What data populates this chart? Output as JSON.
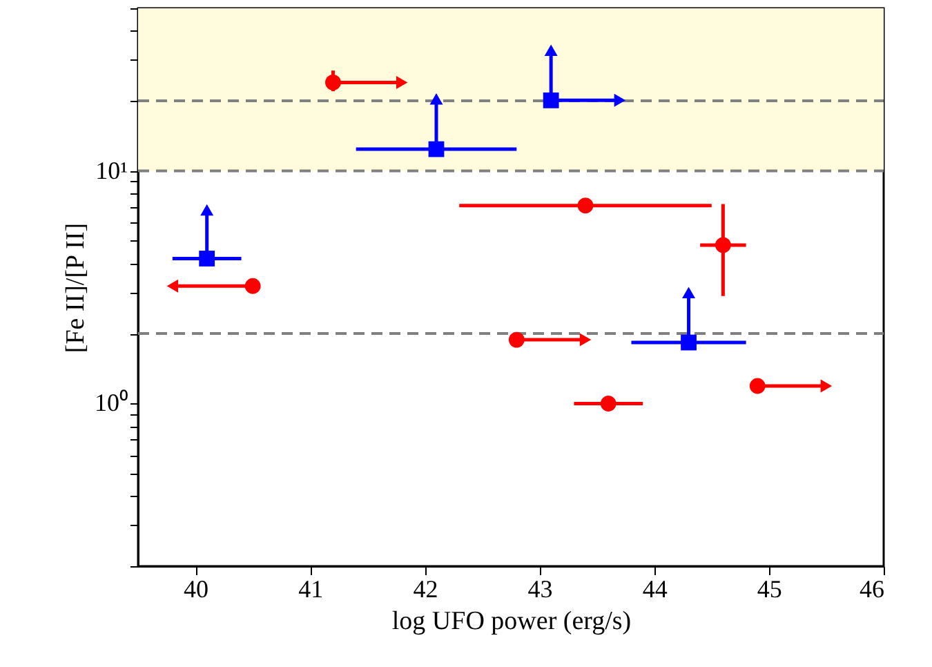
{
  "chart_data": {
    "type": "scatter",
    "xlabel": "log UFO power (erg/s)",
    "ylabel": "[Fe II]/[P II]",
    "xlim": [
      39.5,
      46
    ],
    "xticks": [
      40,
      41,
      42,
      43,
      44,
      45,
      46
    ],
    "ylim": [
      0.2,
      50
    ],
    "log": "y",
    "yticks": [
      {
        "value": 0.2,
        "label": null
      },
      {
        "value": 0.3,
        "label": null
      },
      {
        "value": 0.4,
        "label": null
      },
      {
        "value": 0.5,
        "label": null
      },
      {
        "value": 0.6,
        "label": null
      },
      {
        "value": 0.7,
        "label": null
      },
      {
        "value": 0.8,
        "label": null
      },
      {
        "value": 0.9,
        "label": null
      },
      {
        "value": 1,
        "label": "10⁰"
      },
      {
        "value": 2,
        "label": null
      },
      {
        "value": 3,
        "label": null
      },
      {
        "value": 4,
        "label": null
      },
      {
        "value": 5,
        "label": null
      },
      {
        "value": 6,
        "label": null
      },
      {
        "value": 7,
        "label": null
      },
      {
        "value": 8,
        "label": null
      },
      {
        "value": 9,
        "label": null
      },
      {
        "value": 10,
        "label": "10¹"
      },
      {
        "value": 20,
        "label": null
      },
      {
        "value": 30,
        "label": null
      },
      {
        "value": 40,
        "label": null
      },
      {
        "value": 50,
        "label": null
      }
    ],
    "grid": false,
    "bands": [
      {
        "axis": "y",
        "from": 10,
        "to": 50,
        "color": "#fffbdc"
      }
    ],
    "ref_lines": [
      {
        "axis": "y",
        "value": 20,
        "color": "#808080",
        "line_style": "dashed"
      },
      {
        "axis": "y",
        "value": 10,
        "color": "#808080",
        "line_style": "dashed"
      },
      {
        "axis": "y",
        "value": 2,
        "color": "#808080",
        "line_style": "dashed"
      }
    ],
    "series": [
      {
        "color": "#ff0000",
        "marker": "circle",
        "x": [
          41.2,
          43.4,
          44.6,
          40.5,
          42.8,
          43.6,
          44.9
        ],
        "values": [
          24,
          7.1,
          4.8,
          3.2,
          1.88,
          1.0,
          1.19
        ],
        "xerrors": [
          [
            41.2,
            41.8
          ],
          [
            42.3,
            44.5
          ],
          [
            44.4,
            44.8
          ],
          [
            39.8,
            40.5
          ],
          [
            42.8,
            43.4
          ],
          [
            43.3,
            43.9
          ],
          [
            44.9,
            45.5
          ]
        ],
        "errors": [
          [
            22,
            27
          ],
          null,
          [
            2.9,
            7.2
          ],
          [
            3.0,
            3.4
          ],
          [
            1.75,
            2.0
          ],
          null,
          null
        ]
      },
      {
        "color": "#0000ff",
        "marker": "square",
        "x": [
          40.1,
          42.1,
          43.1,
          44.3
        ],
        "values": [
          4.2,
          12.4,
          20.1,
          1.83
        ],
        "xerrors": [
          [
            39.8,
            40.4
          ],
          [
            41.4,
            42.8
          ],
          [
            43.1,
            43.7
          ],
          [
            43.8,
            44.8
          ]
        ],
        "errors": [
          [
            4.2,
            6.8
          ],
          [
            12.4,
            20.4
          ],
          [
            20.1,
            33
          ],
          [
            1.83,
            3.0
          ]
        ]
      }
    ]
  }
}
